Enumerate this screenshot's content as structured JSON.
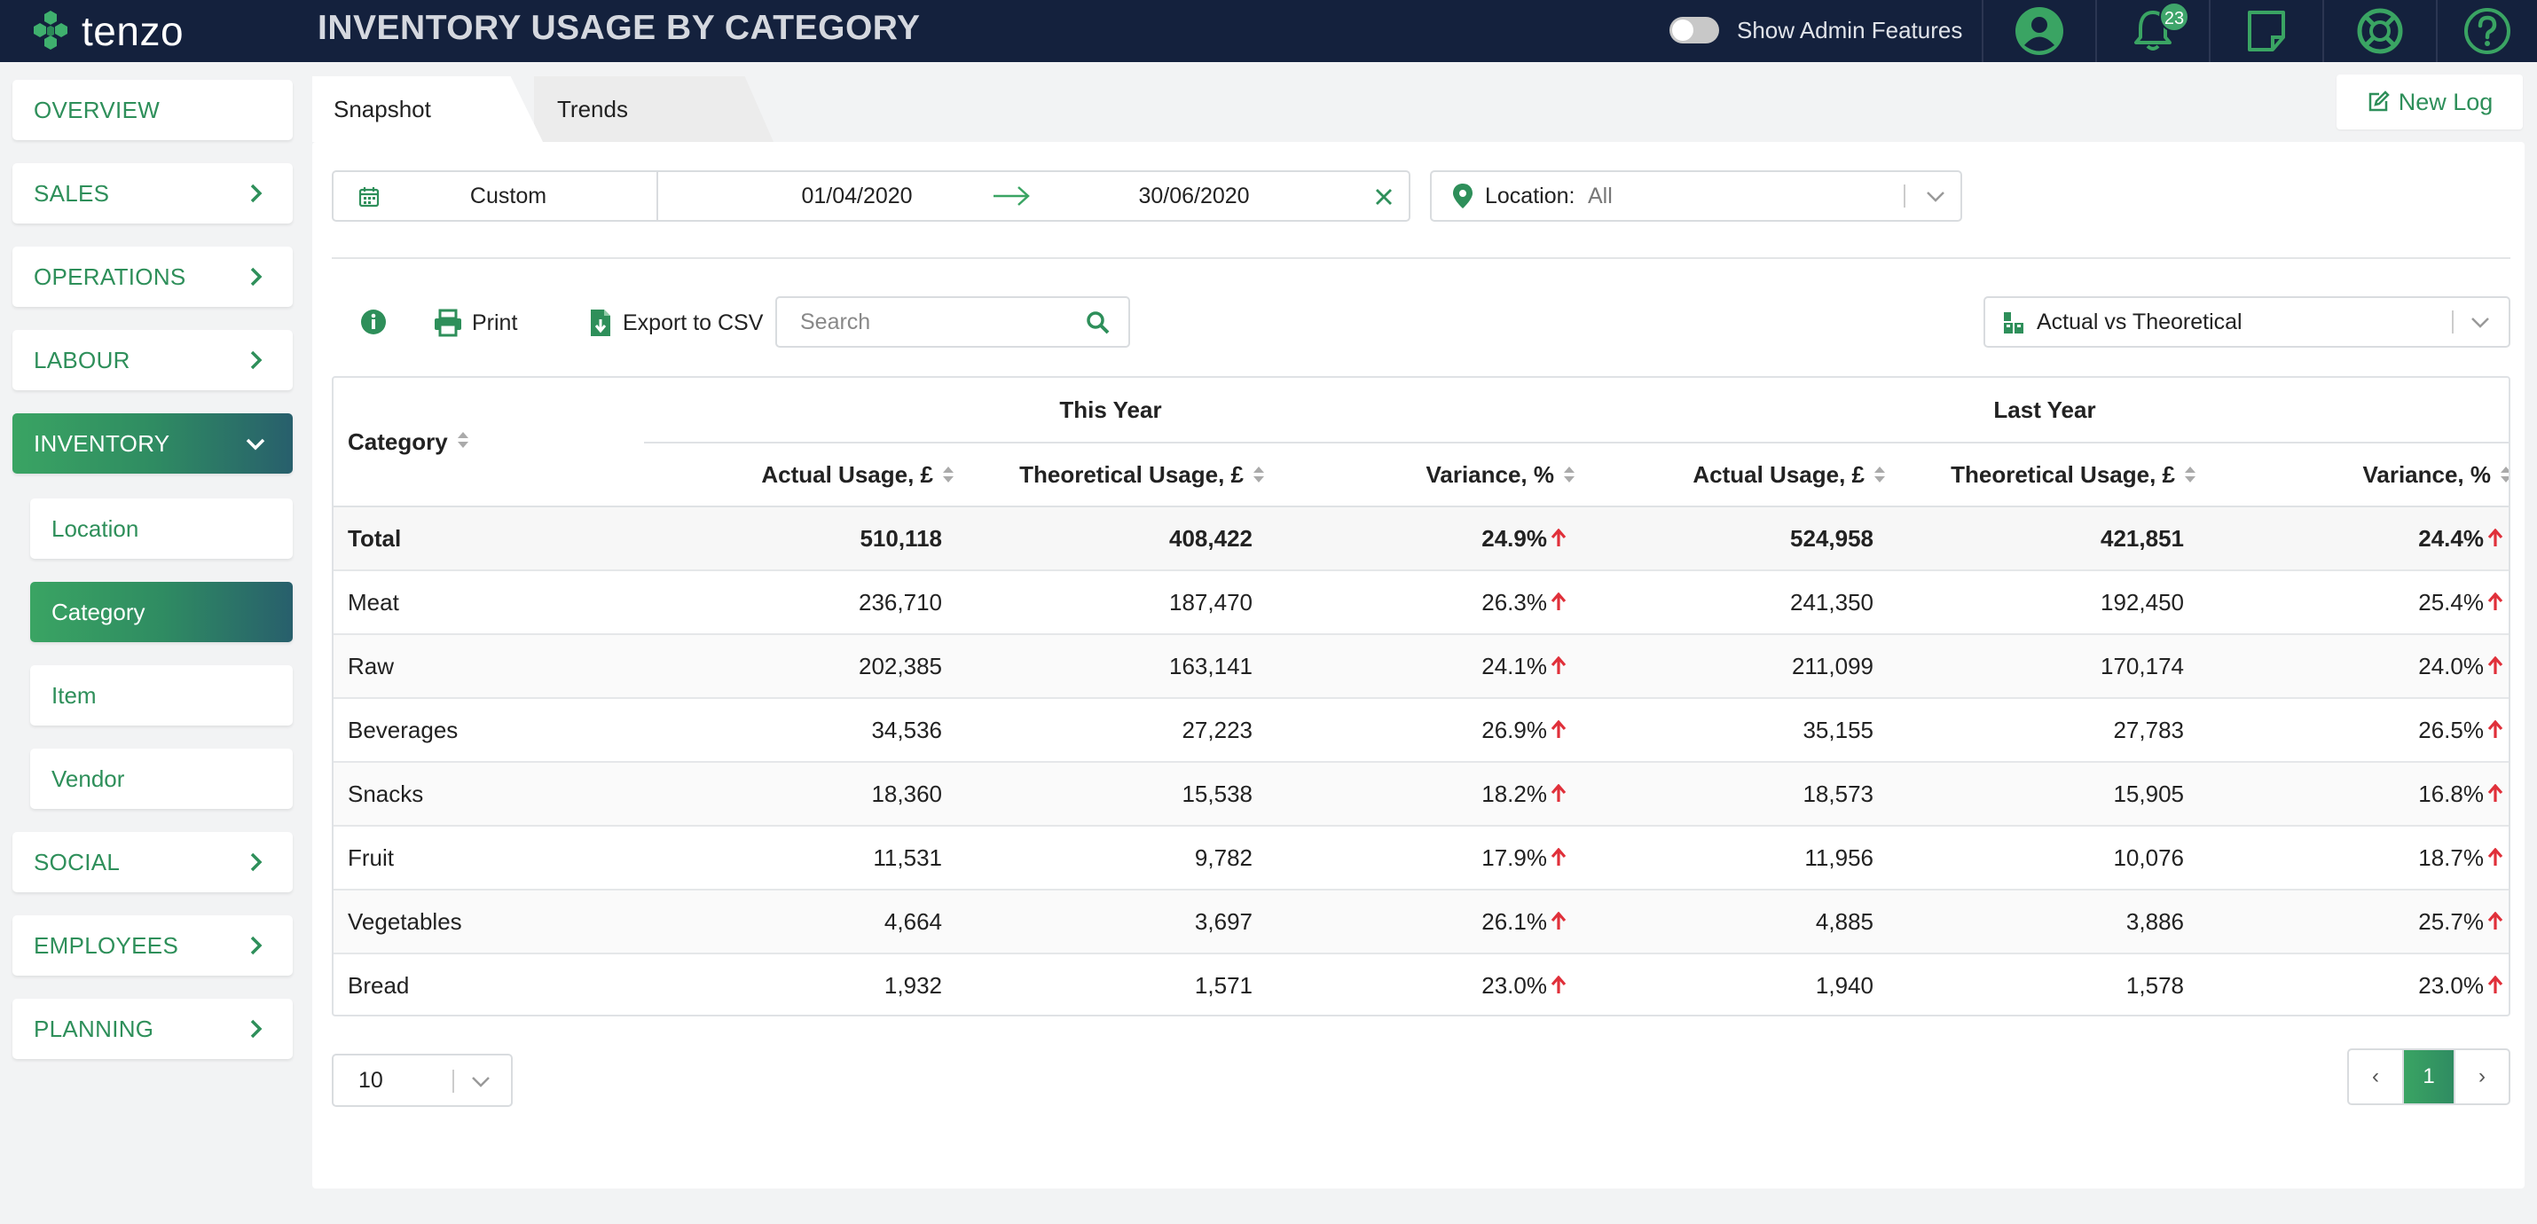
{
  "app": {
    "logo_text": "tenzo",
    "page_title": "INVENTORY USAGE BY CATEGORY",
    "admin_label": "Show Admin Features",
    "notification_count": "23"
  },
  "sidebar": {
    "items": [
      {
        "label": "OVERVIEW"
      },
      {
        "label": "SALES"
      },
      {
        "label": "OPERATIONS"
      },
      {
        "label": "LABOUR"
      },
      {
        "label": "INVENTORY"
      },
      {
        "label": "SOCIAL"
      },
      {
        "label": "EMPLOYEES"
      },
      {
        "label": "PLANNING"
      }
    ],
    "sub_items": [
      {
        "label": "Location"
      },
      {
        "label": "Category"
      },
      {
        "label": "Item"
      },
      {
        "label": "Vendor"
      }
    ]
  },
  "tabs": {
    "snapshot": "Snapshot",
    "trends": "Trends"
  },
  "new_log_label": "New Log",
  "filters": {
    "preset": "Custom",
    "start_date": "01/04/2020",
    "end_date": "30/06/2020",
    "location_label": "Location:",
    "location_value": "All"
  },
  "toolbar": {
    "print_label": "Print",
    "export_label": "Export to CSV",
    "search_placeholder": "Search",
    "view_label": "Actual vs Theoretical"
  },
  "table": {
    "category_header": "Category",
    "groups": [
      "This Year",
      "Last Year"
    ],
    "columns": [
      "Actual Usage, £",
      "Theoretical Usage, £",
      "Variance, %",
      "Actual Usage, £",
      "Theoretical Usage, £",
      "Variance, %"
    ],
    "rows": [
      {
        "cat": "Total",
        "c": [
          "510,118",
          "408,422",
          "24.9%",
          "524,958",
          "421,851",
          "24.4%"
        ]
      },
      {
        "cat": "Meat",
        "c": [
          "236,710",
          "187,470",
          "26.3%",
          "241,350",
          "192,450",
          "25.4%"
        ]
      },
      {
        "cat": "Raw",
        "c": [
          "202,385",
          "163,141",
          "24.1%",
          "211,099",
          "170,174",
          "24.0%"
        ]
      },
      {
        "cat": "Beverages",
        "c": [
          "34,536",
          "27,223",
          "26.9%",
          "35,155",
          "27,783",
          "26.5%"
        ]
      },
      {
        "cat": "Snacks",
        "c": [
          "18,360",
          "15,538",
          "18.2%",
          "18,573",
          "15,905",
          "16.8%"
        ]
      },
      {
        "cat": "Fruit",
        "c": [
          "11,531",
          "9,782",
          "17.9%",
          "11,956",
          "10,076",
          "18.7%"
        ]
      },
      {
        "cat": "Vegetables",
        "c": [
          "4,664",
          "3,697",
          "26.1%",
          "4,885",
          "3,886",
          "25.7%"
        ]
      },
      {
        "cat": "Bread",
        "c": [
          "1,932",
          "1,571",
          "23.0%",
          "1,940",
          "1,578",
          "23.0%"
        ]
      }
    ]
  },
  "pagination": {
    "page_size": "10",
    "prev": "‹",
    "current": "1",
    "next": "›"
  },
  "colors": {
    "brand": "#3aa463",
    "nav_bg": "#14213d",
    "up_arrow": "#e0303a"
  }
}
